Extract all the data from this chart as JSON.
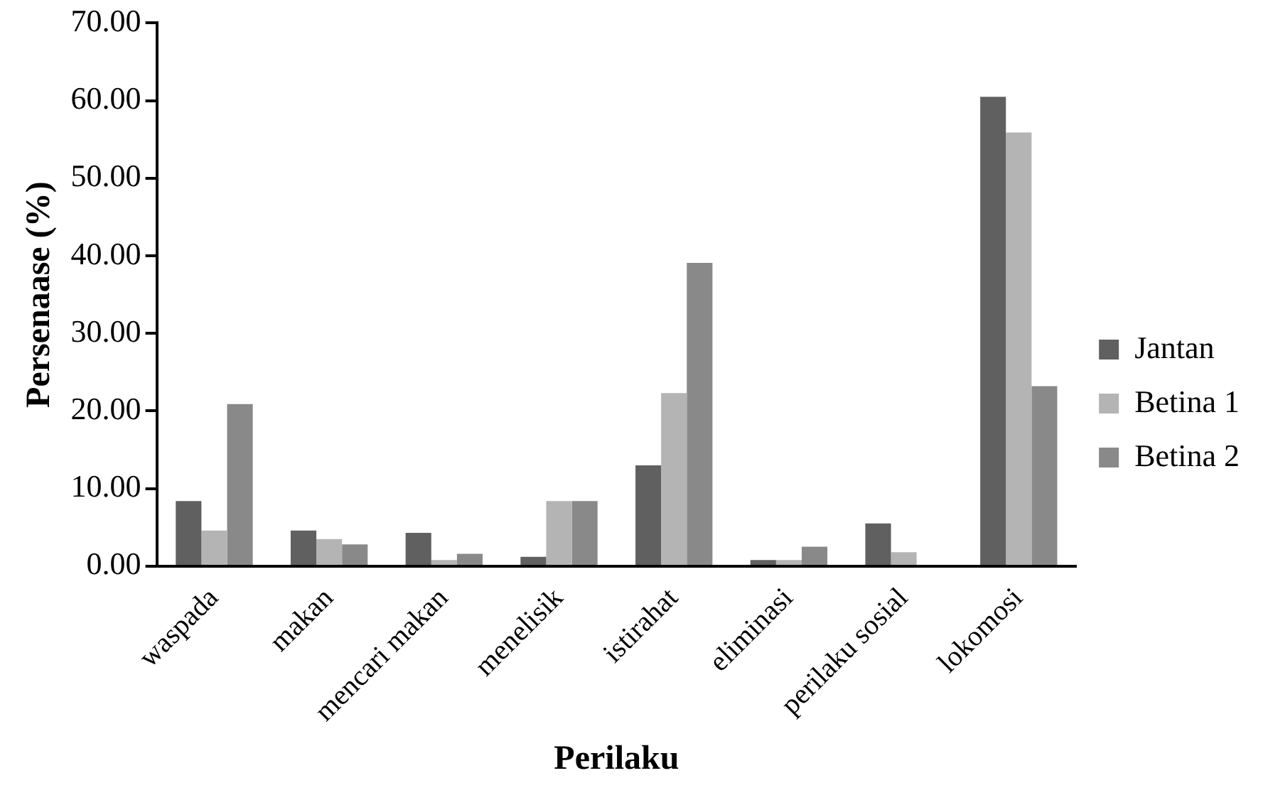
{
  "chart_data": {
    "type": "bar",
    "xlabel": "Perilaku",
    "ylabel": "Persenaase (%)",
    "categories": [
      "waspada",
      "makan",
      "mencari makan",
      "menelisik",
      "istirahat",
      "eliminasi",
      "perilaku sosial",
      "lokomosi"
    ],
    "series": [
      {
        "name": "Jantan",
        "color": "#606060",
        "values": [
          8.4,
          4.6,
          4.3,
          1.2,
          13.0,
          0.8,
          5.5,
          60.5
        ]
      },
      {
        "name": "Betina 1",
        "color": "#b4b4b4",
        "values": [
          4.6,
          3.5,
          0.8,
          8.4,
          22.3,
          0.8,
          1.8,
          55.9
        ]
      },
      {
        "name": "Betina 2",
        "color": "#898989",
        "values": [
          20.9,
          2.8,
          1.6,
          8.4,
          39.1,
          2.5,
          0,
          23.2
        ]
      }
    ],
    "ylim": [
      0,
      70
    ],
    "yticks": [
      {
        "value": 0,
        "label": "0.00"
      },
      {
        "value": 10,
        "label": "10.00"
      },
      {
        "value": 20,
        "label": "20.00"
      },
      {
        "value": 30,
        "label": "30.00"
      },
      {
        "value": 40,
        "label": "40.00"
      },
      {
        "value": 50,
        "label": "50.00"
      },
      {
        "value": 60,
        "label": "60.00"
      },
      {
        "value": 70,
        "label": "70.00"
      }
    ],
    "grid": false,
    "legend": "right"
  }
}
